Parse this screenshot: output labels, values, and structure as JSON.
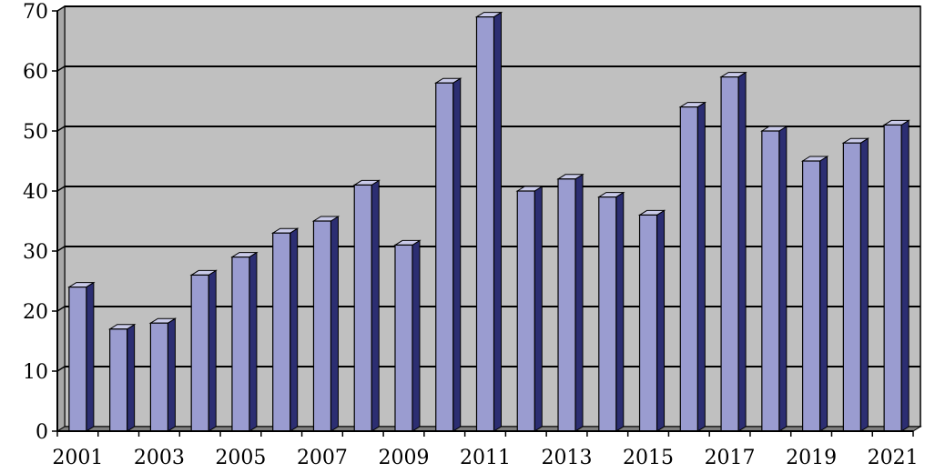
{
  "chart_data": {
    "type": "bar",
    "categories": [
      "2001",
      "2002",
      "2003",
      "2004",
      "2005",
      "2006",
      "2007",
      "2008",
      "2009",
      "2010",
      "2011",
      "2012",
      "2013",
      "2014",
      "2015",
      "2016",
      "2017",
      "2018",
      "2019",
      "2020",
      "2021"
    ],
    "x_tick_labels": [
      "2001",
      "2003",
      "2005",
      "2007",
      "2009",
      "2011",
      "2013",
      "2015",
      "2017",
      "2019",
      "2021"
    ],
    "values": [
      24,
      17,
      18,
      26,
      29,
      33,
      35,
      41,
      31,
      58,
      69,
      40,
      42,
      39,
      36,
      54,
      59,
      50,
      45,
      48,
      51
    ],
    "y_ticks": [
      0,
      10,
      20,
      30,
      40,
      50,
      60,
      70
    ],
    "ylim": [
      0,
      70
    ],
    "title": "",
    "xlabel": "",
    "ylabel": "",
    "grid": true,
    "style": "3d-column",
    "colors": {
      "bar_front": "#9a9cd0",
      "bar_side": "#2c2e72",
      "bar_top": "#c9cae9",
      "bar_edge": "#000000",
      "plot_background": "#c0c0c0",
      "wall_side": "#a8a8a8",
      "floor": "#7f7f7f",
      "gridline": "#000000"
    }
  }
}
